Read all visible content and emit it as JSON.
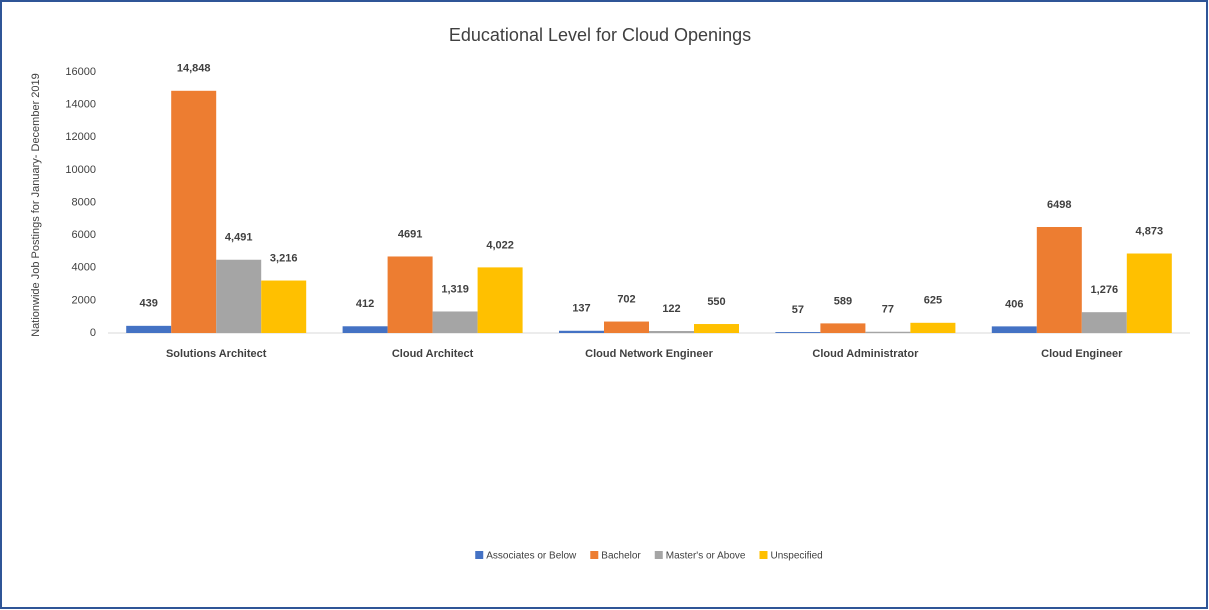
{
  "chart_data": {
    "type": "bar",
    "title": "Educational Level for Cloud Openings",
    "y_label": "Nationwide Job Postings for January- December 2019",
    "categories": [
      "Solutions Architect",
      "Cloud Architect",
      "Cloud Network Engineer",
      "Cloud Administrator",
      "Cloud Engineer"
    ],
    "series": [
      {
        "name": "Associates or Below",
        "color": "#4472c4",
        "values": [
          439,
          412,
          137,
          57,
          406
        ]
      },
      {
        "name": "Bachelor",
        "color": "#ed7d31",
        "values": [
          14848,
          4691,
          702,
          589,
          6498
        ],
        "value_labels": [
          "14,848",
          "4691",
          "702",
          "589",
          "6498"
        ]
      },
      {
        "name": "Master's or Above",
        "color": "#a5a5a5",
        "values": [
          4491,
          1319,
          122,
          77,
          1276
        ],
        "value_labels": [
          "4,491",
          "1,319",
          "122",
          "77",
          "1,276"
        ]
      },
      {
        "name": "Unspecified",
        "color": "#ffc000",
        "values": [
          3216,
          4022,
          550,
          625,
          4873
        ],
        "value_labels": [
          "3,216",
          "4,022",
          "550",
          "625",
          "4,873"
        ]
      }
    ],
    "ylim": [
      0,
      16000
    ],
    "yticks": [
      0,
      2000,
      4000,
      6000,
      8000,
      10000,
      12000,
      14000,
      16000
    ],
    "grid": false,
    "legend": "bottom"
  }
}
